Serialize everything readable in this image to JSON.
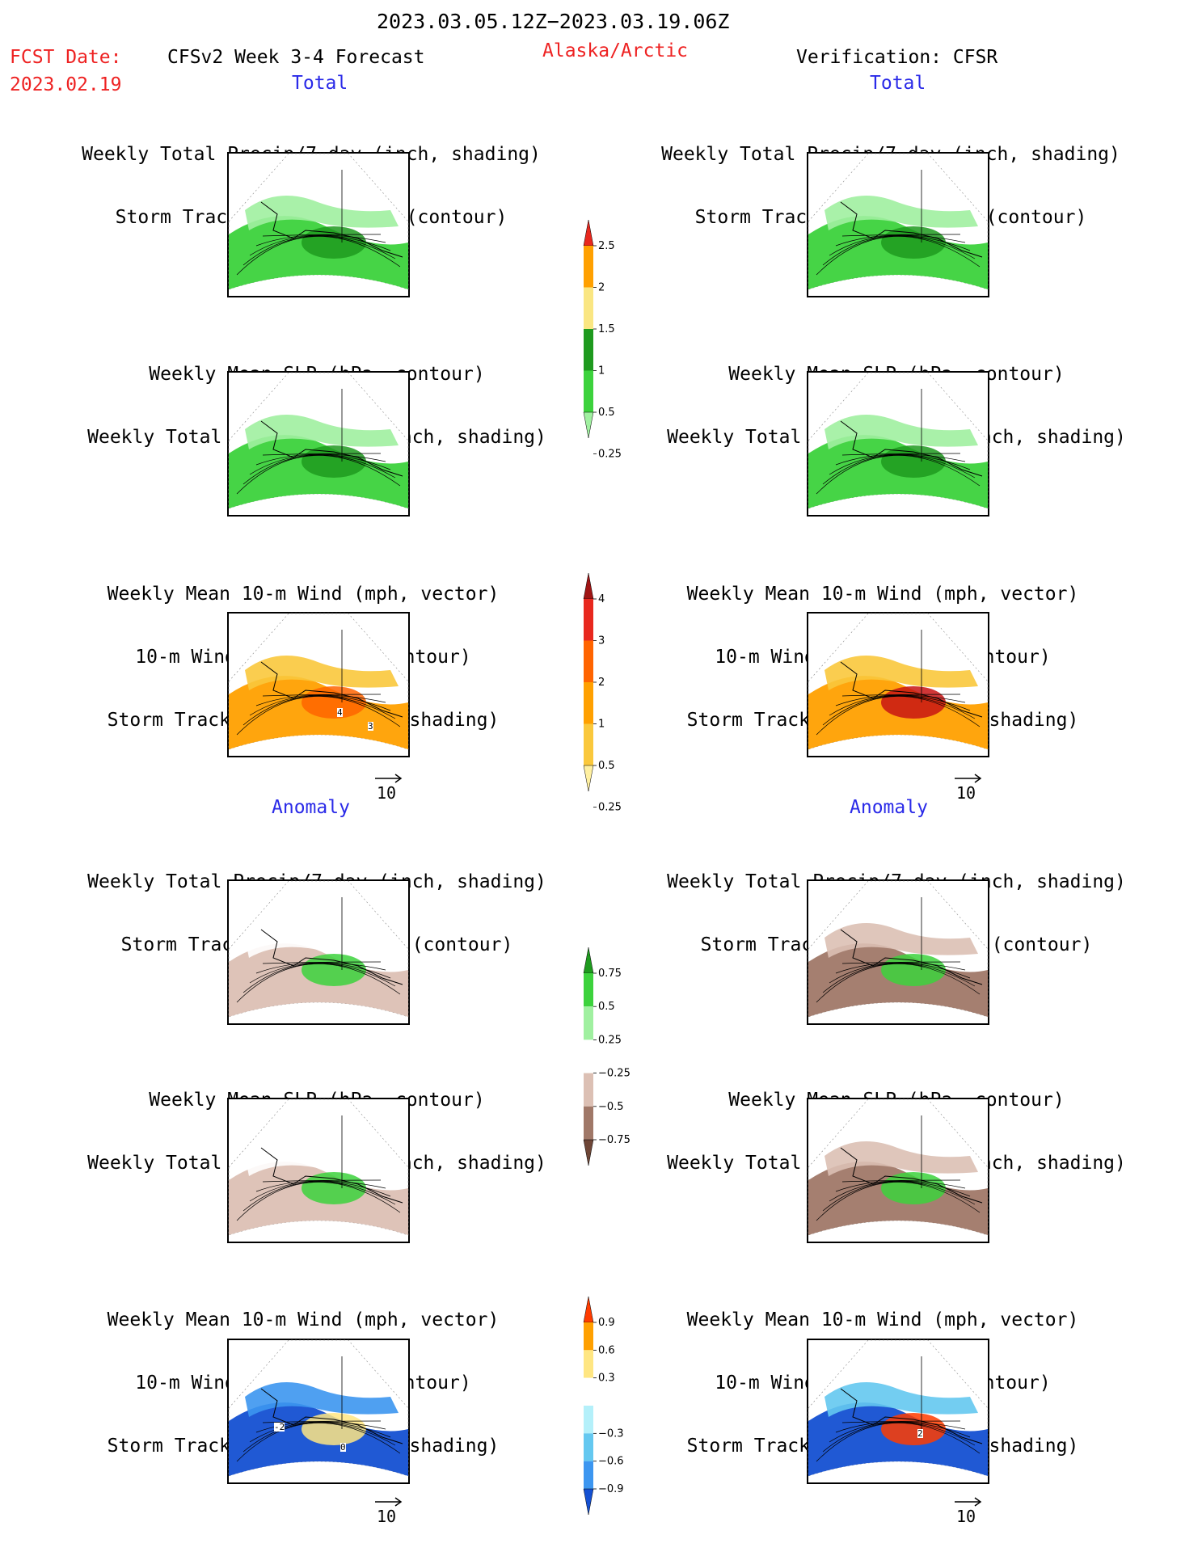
{
  "header": {
    "date_range": "2023.03.05.12Z−2023.03.19.06Z",
    "fcst_label": "FCST Date:",
    "fcst_date": "2023.02.19",
    "forecast_title": "CFSv2 Week 3-4 Forecast",
    "region": "Alaska/Arctic",
    "verification": "Verification: CFSR"
  },
  "sections": {
    "total_left": "Total",
    "total_right": "Total",
    "anomaly_left": "Anomaly",
    "anomaly_right": "Anomaly"
  },
  "panel_titles": {
    "precip_storm": [
      "Weekly Total Precip/7-day (inch, shading)",
      "Storm Track Density/7-day (contour)"
    ],
    "slp_precip": [
      "Weekly Mean SLP (hPa, contour)",
      "Weekly Total Precip/7-day (inch, shading)"
    ],
    "wind_storm": [
      "Weekly Mean 10-m Wind (mph, vector)",
      "10-m Wind Speed (mph, contour)",
      "Storm Track Density/7-day (shading)"
    ]
  },
  "vector_reference": "10",
  "map_labels": {
    "total_wind_left": [
      "4",
      "3"
    ],
    "anom_wind_left": [
      "-2",
      "0"
    ],
    "anom_wind_right": [
      "2"
    ]
  },
  "colorbars": {
    "precip_total": {
      "labels": [
        "2.5",
        "2",
        "1.5",
        "1",
        "0.5",
        "0.25"
      ],
      "colors": [
        "#e8281e",
        "#ffa000",
        "#fae682",
        "#1e9a1e",
        "#3cd23c",
        "#a0f0a0"
      ]
    },
    "storm_total": {
      "labels": [
        "4",
        "3",
        "2",
        "1",
        "0.5",
        "0.25"
      ],
      "colors": [
        "#a01414",
        "#e8281e",
        "#ff6400",
        "#ffa000",
        "#fac83c",
        "#fff0a0"
      ]
    },
    "precip_anom": {
      "labels": [
        "0.75",
        "0.5",
        "0.25",
        "−0.25",
        "−0.5",
        "−0.75"
      ],
      "colors": [
        "#1e9a1e",
        "#3cd23c",
        "#a0f0a0",
        "#ffffff",
        "#dcc0b4",
        "#a07868",
        "#6e4637"
      ]
    },
    "storm_anom": {
      "labels": [
        "0.9",
        "0.6",
        "0.3",
        "−0.3",
        "−0.6",
        "−0.9"
      ],
      "colors": [
        "#ff3c00",
        "#ffa000",
        "#ffe682",
        "#ffffff",
        "#b4f0fa",
        "#64c8f0",
        "#3c96f0",
        "#1450d2"
      ]
    }
  }
}
